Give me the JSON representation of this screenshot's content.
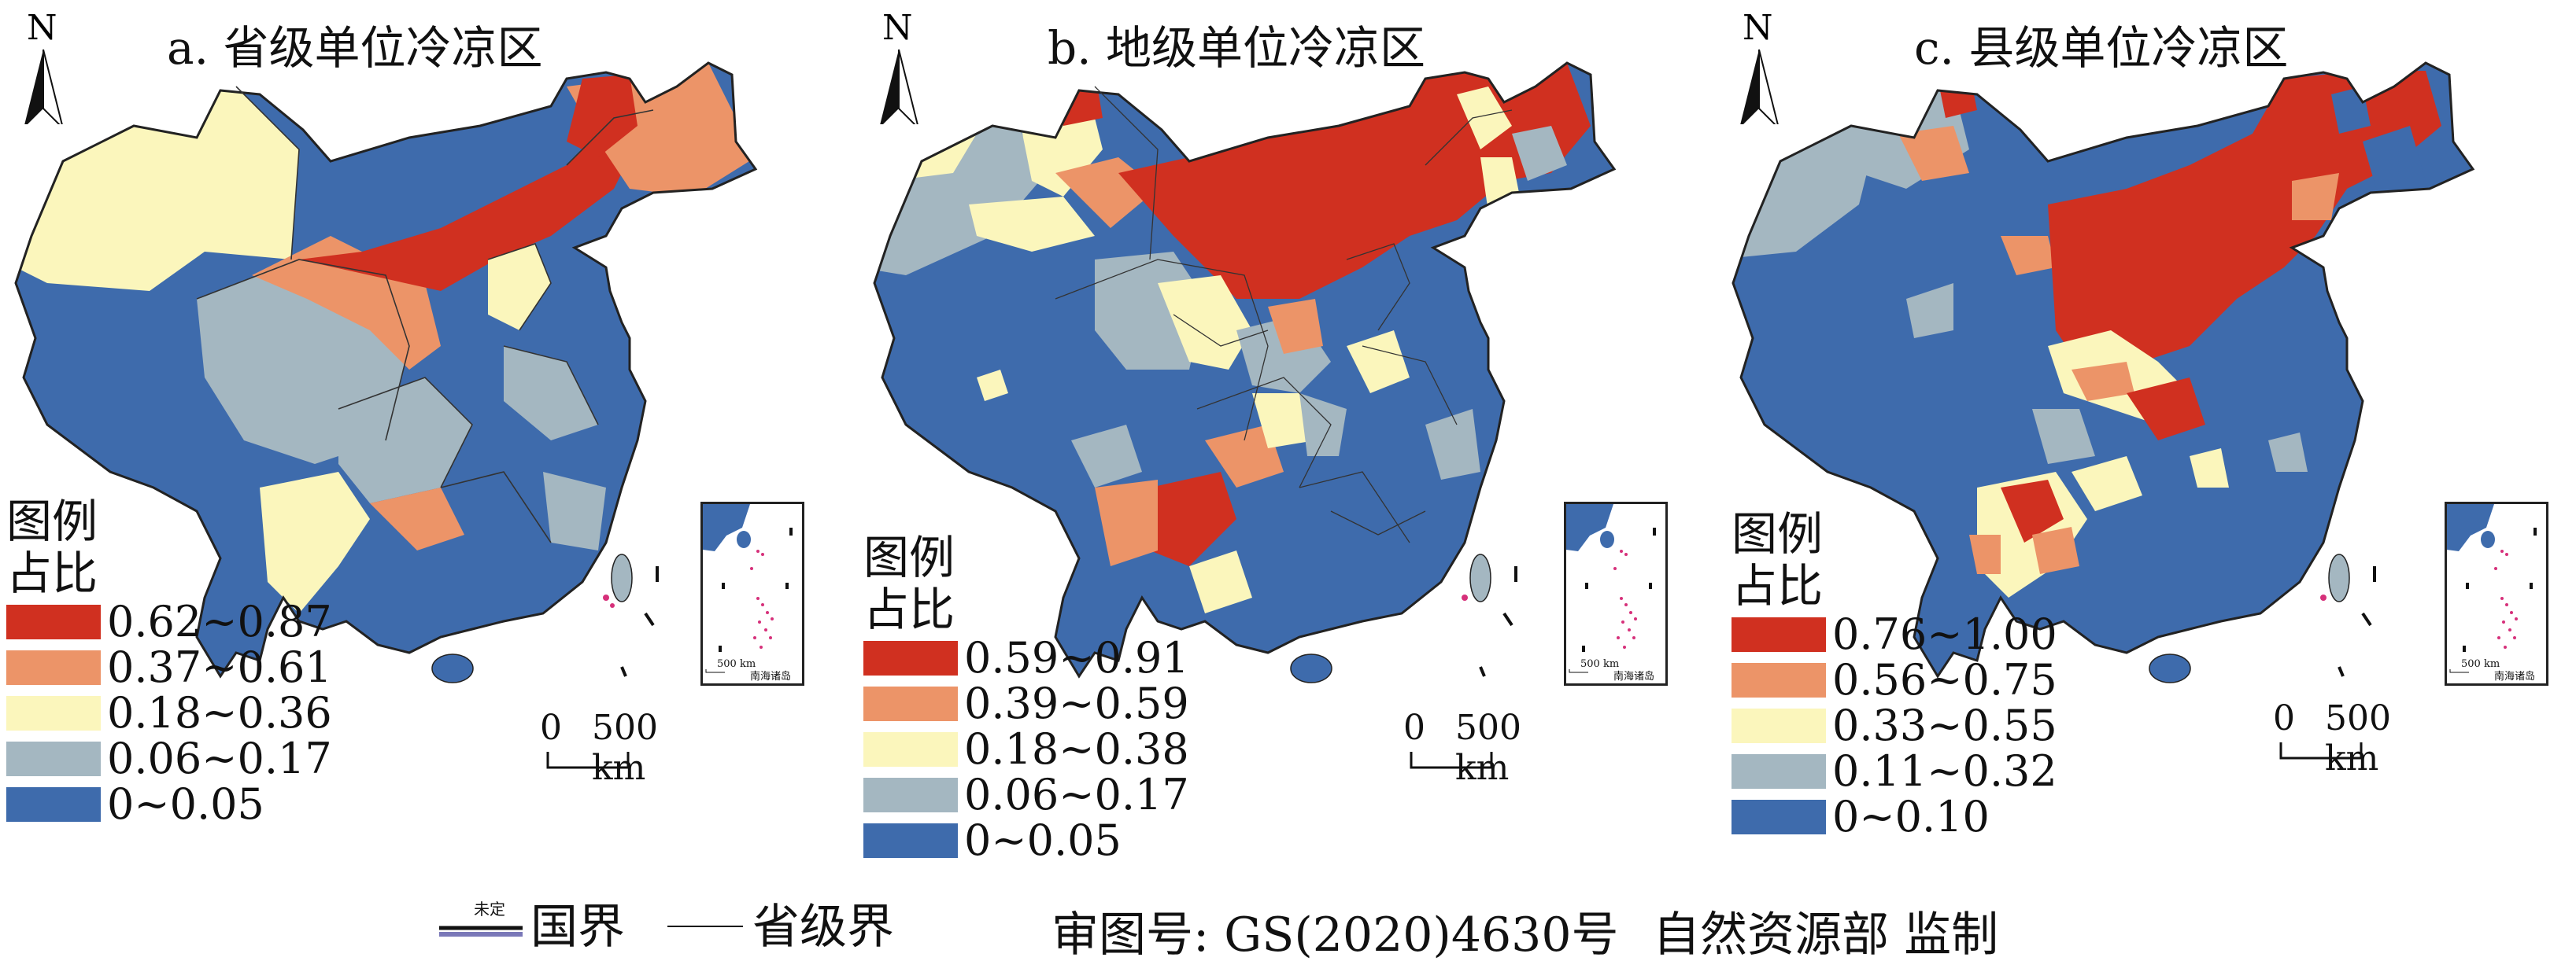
{
  "panels": [
    {
      "title": "a. 省级单位冷凉区",
      "legend_header_1": "图例",
      "legend_header_2": "占比",
      "legend": [
        {
          "label": "0.62~0.87",
          "color": "#d03020"
        },
        {
          "label": "0.37~0.61",
          "color": "#ec9468"
        },
        {
          "label": "0.18~0.36",
          "color": "#fbf6bc"
        },
        {
          "label": "0.06~0.17",
          "color": "#a4b7c1"
        },
        {
          "label": "0~0.05",
          "color": "#3e6bac"
        }
      ],
      "scale_zero": "0",
      "scale_label": "500 km",
      "inset_scale": "500 km",
      "inset_label": "南海诸岛"
    },
    {
      "title": "b. 地级单位冷凉区",
      "legend_header_1": "图例",
      "legend_header_2": "占比",
      "legend": [
        {
          "label": "0.59~0.91",
          "color": "#d03020"
        },
        {
          "label": "0.39~0.59",
          "color": "#ec9468"
        },
        {
          "label": "0.18~0.38",
          "color": "#fbf6bc"
        },
        {
          "label": "0.06~0.17",
          "color": "#a4b7c1"
        },
        {
          "label": "0~0.05",
          "color": "#3e6bac"
        }
      ],
      "scale_zero": "0",
      "scale_label": "500 km",
      "inset_scale": "500 km",
      "inset_label": "南海诸岛"
    },
    {
      "title": "c. 县级单位冷凉区",
      "legend_header_1": "图例",
      "legend_header_2": "占比",
      "legend": [
        {
          "label": "0.76~1.00",
          "color": "#d03020"
        },
        {
          "label": "0.56~0.75",
          "color": "#ec9468"
        },
        {
          "label": "0.33~0.55",
          "color": "#fbf6bc"
        },
        {
          "label": "0.11~0.32",
          "color": "#a4b7c1"
        },
        {
          "label": "0~0.10",
          "color": "#3e6bac"
        }
      ],
      "scale_zero": "0",
      "scale_label": "500 km",
      "inset_scale": "500 km",
      "inset_label": "南海诸岛"
    }
  ],
  "north_label": "N",
  "bottom_legend": {
    "undetermined": "未定",
    "national_border": "国界",
    "provincial_border": "省级界"
  },
  "credit": {
    "approval": "审图号: GS(2020)4630号",
    "authority": "自然资源部 监制"
  },
  "colors": {
    "red": "#d03020",
    "orange": "#ec9468",
    "yellow": "#fbf6bc",
    "gray": "#a4b7c1",
    "blue": "#3e6bac",
    "sea": "#3b6fb0",
    "islands": "#d6307a"
  }
}
